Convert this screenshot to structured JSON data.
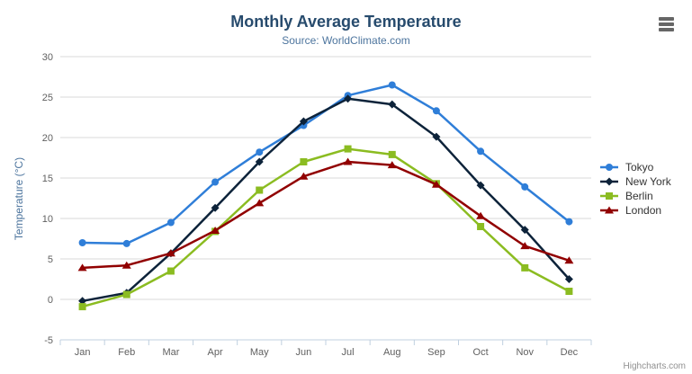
{
  "chart": {
    "credit": "Highcharts.com",
    "context_menu_icon": "hamburger-icon"
  },
  "colors": {
    "title": "#274b6d",
    "subtitle": "#4d759e",
    "axis_labels": "#606060",
    "gridline": "#d8d8d8",
    "axis_line": "#c0d0e0",
    "tick": "#c0d0e0",
    "legend_text": "#333333",
    "credit_text": "#909090",
    "menu_icon": "#666666",
    "background": "#ffffff"
  },
  "chart_data": {
    "type": "line",
    "title": "Monthly Average Temperature",
    "subtitle": "Source: WorldClimate.com",
    "categories": [
      "Jan",
      "Feb",
      "Mar",
      "Apr",
      "May",
      "Jun",
      "Jul",
      "Aug",
      "Sep",
      "Oct",
      "Nov",
      "Dec"
    ],
    "xlabel": "",
    "ylabel": "Temperature (°C)",
    "ylim": [
      -5,
      30
    ],
    "yticks": [
      -5,
      0,
      5,
      10,
      15,
      20,
      25,
      30
    ],
    "grid": true,
    "legend_position": "right",
    "series": [
      {
        "name": "Tokyo",
        "color": "#2f7ed8",
        "marker": "circle",
        "values": [
          7.0,
          6.9,
          9.5,
          14.5,
          18.2,
          21.5,
          25.2,
          26.5,
          23.3,
          18.3,
          13.9,
          9.6
        ]
      },
      {
        "name": "New York",
        "color": "#0d233a",
        "marker": "diamond",
        "values": [
          -0.2,
          0.8,
          5.7,
          11.3,
          17.0,
          22.0,
          24.8,
          24.1,
          20.1,
          14.1,
          8.6,
          2.5
        ]
      },
      {
        "name": "Berlin",
        "color": "#8bbc21",
        "marker": "square",
        "values": [
          -0.9,
          0.6,
          3.5,
          8.4,
          13.5,
          17.0,
          18.6,
          17.9,
          14.3,
          9.0,
          3.9,
          1.0
        ]
      },
      {
        "name": "London",
        "color": "#910000",
        "marker": "triangle",
        "values": [
          3.9,
          4.2,
          5.7,
          8.5,
          11.9,
          15.2,
          17.0,
          16.6,
          14.2,
          10.3,
          6.6,
          4.8
        ]
      }
    ]
  }
}
